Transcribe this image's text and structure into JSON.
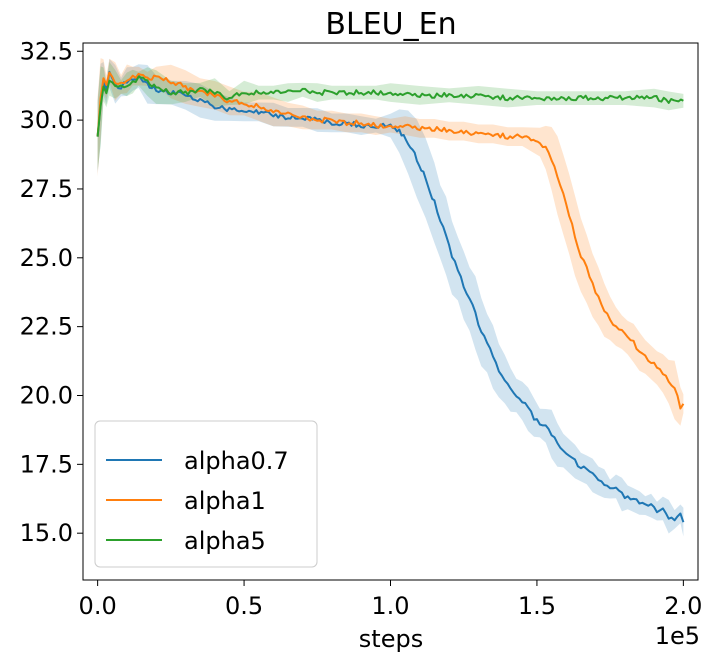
{
  "chart_data": {
    "type": "line",
    "title": "BLEU_En",
    "xlabel": "steps",
    "ylabel": "",
    "x_offset_label": "1e5",
    "xlim": [
      -5000,
      205000
    ],
    "ylim": [
      13.3,
      32.8
    ],
    "x_ticks": [
      0,
      50000,
      100000,
      150000,
      200000
    ],
    "x_tick_labels": [
      "0.0",
      "0.5",
      "1.0",
      "1.5",
      "2.0"
    ],
    "y_ticks": [
      15.0,
      17.5,
      20.0,
      22.5,
      25.0,
      27.5,
      30.0,
      32.5
    ],
    "y_tick_labels": [
      "15.0",
      "17.5",
      "20.0",
      "22.5",
      "25.0",
      "27.5",
      "30.0",
      "32.5"
    ],
    "grid": false,
    "legend_position": "lower-left",
    "series": [
      {
        "name": "alpha0.7",
        "color": "#1f77b4",
        "x": [
          0,
          1000,
          2000,
          3000,
          4000,
          6000,
          8000,
          10000,
          12000,
          14000,
          17000,
          20000,
          25000,
          30000,
          35000,
          40000,
          45000,
          50000,
          55000,
          60000,
          65000,
          70000,
          75000,
          80000,
          85000,
          90000,
          95000,
          100000,
          103000,
          106000,
          109000,
          112000,
          115000,
          117000,
          119000,
          121000,
          123000,
          125000,
          127000,
          129000,
          131000,
          133000,
          135000,
          137000,
          139000,
          141000,
          143000,
          145000,
          147000,
          149000,
          151000,
          153000,
          155000,
          157000,
          159000,
          161000,
          163000,
          165000,
          167000,
          169000,
          171000,
          173000,
          175000,
          177000,
          179000,
          181000,
          183000,
          185000,
          187000,
          189000,
          191000,
          193000,
          195000,
          197000,
          199000,
          200000
        ],
        "y": [
          29.4,
          30.6,
          31.5,
          31.0,
          31.7,
          31.3,
          31.2,
          31.4,
          31.5,
          31.6,
          31.3,
          31.1,
          31.0,
          30.9,
          30.7,
          30.5,
          30.4,
          30.3,
          30.3,
          30.2,
          30.1,
          30.1,
          30.0,
          29.9,
          29.9,
          29.8,
          29.8,
          29.8,
          29.6,
          29.2,
          28.6,
          27.9,
          27.0,
          26.3,
          25.8,
          25.0,
          24.6,
          24.0,
          23.5,
          23.0,
          22.3,
          21.9,
          21.4,
          20.9,
          20.6,
          20.2,
          20.0,
          19.8,
          19.5,
          19.2,
          19.0,
          18.9,
          18.6,
          18.2,
          18.0,
          17.8,
          17.6,
          17.4,
          17.3,
          17.1,
          16.9,
          16.8,
          16.6,
          16.7,
          16.4,
          16.3,
          16.2,
          16.1,
          16.0,
          16.0,
          15.8,
          15.9,
          15.6,
          15.5,
          15.7,
          15.4
        ]
      },
      {
        "name": "alpha1",
        "color": "#ff7f0e",
        "x": [
          0,
          1000,
          2000,
          3000,
          4000,
          6000,
          8000,
          10000,
          12000,
          14000,
          17000,
          20000,
          25000,
          30000,
          35000,
          40000,
          45000,
          50000,
          55000,
          60000,
          65000,
          70000,
          75000,
          80000,
          85000,
          90000,
          95000,
          100000,
          105000,
          110000,
          115000,
          120000,
          125000,
          130000,
          135000,
          140000,
          145000,
          148000,
          151000,
          153000,
          155000,
          157000,
          159000,
          161000,
          163000,
          165000,
          167000,
          169000,
          171000,
          173000,
          175000,
          177000,
          179000,
          181000,
          183000,
          185000,
          187000,
          189000,
          191000,
          193000,
          195000,
          197000,
          199000,
          200000
        ],
        "y": [
          29.4,
          30.8,
          31.6,
          31.2,
          31.8,
          31.4,
          31.3,
          31.5,
          31.6,
          31.6,
          31.5,
          31.6,
          31.4,
          31.2,
          31.0,
          30.9,
          30.7,
          30.6,
          30.5,
          30.3,
          30.2,
          30.1,
          30.0,
          30.0,
          29.9,
          29.9,
          29.8,
          29.8,
          29.8,
          29.7,
          29.7,
          29.6,
          29.6,
          29.5,
          29.5,
          29.4,
          29.4,
          29.3,
          29.2,
          29.0,
          28.6,
          28.0,
          27.3,
          26.6,
          25.8,
          25.1,
          24.6,
          24.0,
          23.6,
          23.1,
          22.8,
          22.5,
          22.3,
          22.1,
          21.9,
          21.6,
          21.4,
          21.2,
          21.0,
          20.8,
          20.5,
          20.2,
          19.6,
          19.7
        ]
      },
      {
        "name": "alpha5",
        "color": "#2ca02c",
        "x": [
          0,
          1000,
          2000,
          3000,
          4000,
          6000,
          8000,
          10000,
          12000,
          14000,
          17000,
          20000,
          25000,
          30000,
          35000,
          40000,
          45000,
          50000,
          55000,
          60000,
          65000,
          70000,
          75000,
          80000,
          85000,
          90000,
          95000,
          100000,
          110000,
          120000,
          130000,
          140000,
          150000,
          160000,
          170000,
          180000,
          190000,
          195000,
          200000
        ],
        "y": [
          29.4,
          30.5,
          31.3,
          30.9,
          31.5,
          31.3,
          31.2,
          31.3,
          31.4,
          31.5,
          31.4,
          31.2,
          31.0,
          31.0,
          31.1,
          31.0,
          30.8,
          31.0,
          31.0,
          31.0,
          31.0,
          31.1,
          31.0,
          31.0,
          31.0,
          31.0,
          31.0,
          31.0,
          30.9,
          30.9,
          30.9,
          30.8,
          30.8,
          30.8,
          30.8,
          30.8,
          30.8,
          30.7,
          30.7
        ]
      }
    ]
  }
}
